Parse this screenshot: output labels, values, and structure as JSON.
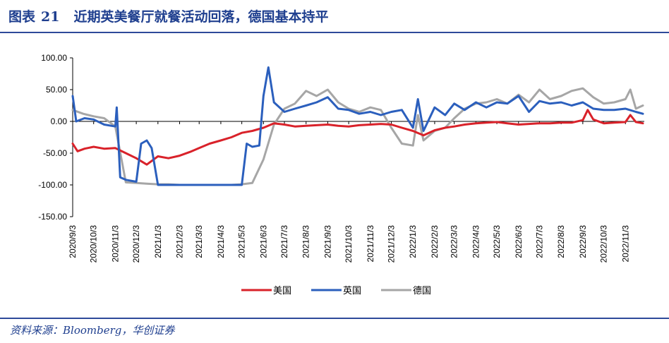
{
  "figure": {
    "label": "图表",
    "number": "21",
    "title": "近期英美餐厅就餐活动回落，德国基本持平",
    "source": "资料来源：Bloomberg，华创证券"
  },
  "chart_data": {
    "type": "line",
    "title": "",
    "xlabel": "",
    "ylabel": "",
    "ylim": [
      -150,
      100
    ],
    "yticks": [
      "100.00",
      "50.00",
      "0.00",
      "-50.00",
      "-100.00",
      "-150.00"
    ],
    "xticks": [
      "2020/9/3",
      "2020/10/3",
      "2020/11/3",
      "2020/12/3",
      "2021/1/3",
      "2021/2/3",
      "2021/3/3",
      "2021/4/3",
      "2021/5/3",
      "2021/6/3",
      "2021/7/3",
      "2021/8/3",
      "2021/9/3",
      "2021/10/3",
      "2021/11/3",
      "2021/12/3",
      "2022/1/3",
      "2022/2/3",
      "2022/3/3",
      "2022/4/3",
      "2022/5/3",
      "2022/6/3",
      "2022/7/3",
      "2022/8/3",
      "2022/9/3",
      "2022/10/3",
      "2022/11/3"
    ],
    "grid": false,
    "legend_position": "bottom",
    "series": [
      {
        "name": "美国",
        "color": "#d9222a",
        "x": [
          "2020/9/3",
          "2020/9/10",
          "2020/9/20",
          "2020/10/3",
          "2020/10/18",
          "2020/11/3",
          "2020/11/18",
          "2020/12/3",
          "2020/12/18",
          "2021/1/3",
          "2021/1/18",
          "2021/2/3",
          "2021/2/18",
          "2021/3/3",
          "2021/3/18",
          "2021/4/3",
          "2021/4/18",
          "2021/5/3",
          "2021/5/18",
          "2021/6/3",
          "2021/6/18",
          "2021/7/3",
          "2021/7/18",
          "2021/8/3",
          "2021/8/18",
          "2021/9/3",
          "2021/9/18",
          "2021/10/3",
          "2021/10/18",
          "2021/11/3",
          "2021/11/18",
          "2021/12/3",
          "2021/12/18",
          "2022/1/3",
          "2022/1/18",
          "2022/2/3",
          "2022/2/18",
          "2022/3/3",
          "2022/3/18",
          "2022/4/3",
          "2022/4/18",
          "2022/5/3",
          "2022/5/18",
          "2022/6/3",
          "2022/6/18",
          "2022/7/3",
          "2022/7/18",
          "2022/8/3",
          "2022/8/18",
          "2022/9/3",
          "2022/9/10",
          "2022/9/18",
          "2022/10/3",
          "2022/10/18",
          "2022/11/3",
          "2022/11/10",
          "2022/11/18",
          "2022/11/28"
        ],
        "values": [
          -35,
          -47,
          -43,
          -40,
          -43,
          -42,
          -50,
          -58,
          -68,
          -55,
          -58,
          -54,
          -48,
          -42,
          -35,
          -30,
          -25,
          -18,
          -15,
          -10,
          -3,
          -5,
          -8,
          -7,
          -6,
          -5,
          -7,
          -8,
          -6,
          -5,
          -4,
          -5,
          -10,
          -15,
          -22,
          -14,
          -10,
          -8,
          -5,
          -3,
          -2,
          -1,
          -3,
          -5,
          -4,
          -3,
          -3,
          -2,
          -2,
          2,
          18,
          3,
          -3,
          -2,
          -1,
          10,
          -1,
          -3
        ]
      },
      {
        "name": "英国",
        "color": "#2b5fbd",
        "x": [
          "2020/9/3",
          "2020/9/8",
          "2020/9/20",
          "2020/10/3",
          "2020/10/18",
          "2020/11/3",
          "2020/11/5",
          "2020/11/10",
          "2020/11/18",
          "2020/12/3",
          "2020/12/10",
          "2020/12/18",
          "2020/12/25",
          "2021/1/3",
          "2021/1/18",
          "2021/2/3",
          "2021/2/18",
          "2021/3/3",
          "2021/3/18",
          "2021/4/3",
          "2021/4/18",
          "2021/5/3",
          "2021/5/10",
          "2021/5/18",
          "2021/5/28",
          "2021/6/3",
          "2021/6/10",
          "2021/6/18",
          "2021/7/3",
          "2021/7/18",
          "2021/8/3",
          "2021/8/18",
          "2021/9/3",
          "2021/9/18",
          "2021/10/3",
          "2021/10/18",
          "2021/11/3",
          "2021/11/18",
          "2021/12/3",
          "2021/12/18",
          "2022/1/3",
          "2022/1/10",
          "2022/1/18",
          "2022/2/3",
          "2022/2/18",
          "2022/3/3",
          "2022/3/18",
          "2022/4/3",
          "2022/4/18",
          "2022/5/3",
          "2022/5/18",
          "2022/6/3",
          "2022/6/18",
          "2022/7/3",
          "2022/7/18",
          "2022/8/3",
          "2022/8/18",
          "2022/9/3",
          "2022/9/18",
          "2022/10/3",
          "2022/10/18",
          "2022/11/3",
          "2022/11/18",
          "2022/11/28"
        ],
        "values": [
          40,
          0,
          5,
          3,
          -5,
          -8,
          22,
          -88,
          -92,
          -95,
          -35,
          -30,
          -42,
          -100,
          -100,
          -100,
          -100,
          -100,
          -100,
          -100,
          -100,
          -100,
          -35,
          -40,
          -38,
          40,
          85,
          30,
          15,
          20,
          25,
          30,
          38,
          20,
          18,
          12,
          15,
          10,
          15,
          18,
          -10,
          35,
          -15,
          22,
          10,
          28,
          18,
          30,
          22,
          30,
          28,
          40,
          15,
          32,
          28,
          30,
          25,
          30,
          20,
          18,
          18,
          20,
          15,
          12
        ]
      },
      {
        "name": "德国",
        "color": "#a6a6a6",
        "x": [
          "2020/9/3",
          "2020/9/18",
          "2020/10/3",
          "2020/10/18",
          "2020/11/3",
          "2020/11/18",
          "2020/12/3",
          "2020/12/18",
          "2021/1/3",
          "2021/1/18",
          "2021/2/3",
          "2021/2/18",
          "2021/3/3",
          "2021/3/18",
          "2021/4/3",
          "2021/4/18",
          "2021/5/3",
          "2021/5/18",
          "2021/6/3",
          "2021/6/18",
          "2021/7/3",
          "2021/7/18",
          "2021/8/3",
          "2021/8/18",
          "2021/9/3",
          "2021/9/18",
          "2021/10/3",
          "2021/10/18",
          "2021/11/3",
          "2021/11/18",
          "2021/12/3",
          "2021/12/18",
          "2022/1/3",
          "2022/1/10",
          "2022/1/18",
          "2022/2/3",
          "2022/2/18",
          "2022/3/3",
          "2022/3/18",
          "2022/4/3",
          "2022/4/18",
          "2022/5/3",
          "2022/5/18",
          "2022/6/3",
          "2022/6/18",
          "2022/7/3",
          "2022/7/18",
          "2022/8/3",
          "2022/8/18",
          "2022/9/3",
          "2022/9/18",
          "2022/10/3",
          "2022/10/18",
          "2022/11/3",
          "2022/11/10",
          "2022/11/18",
          "2022/11/28"
        ],
        "values": [
          18,
          12,
          8,
          5,
          -8,
          -96,
          -97,
          -98,
          -99,
          -99,
          -100,
          -100,
          -100,
          -100,
          -100,
          -100,
          -99,
          -97,
          -60,
          -5,
          20,
          28,
          48,
          40,
          50,
          30,
          20,
          15,
          22,
          18,
          -10,
          -35,
          -38,
          10,
          -30,
          -15,
          -10,
          5,
          20,
          28,
          30,
          35,
          28,
          42,
          30,
          50,
          35,
          40,
          48,
          52,
          38,
          28,
          30,
          35,
          50,
          20,
          25
        ]
      }
    ]
  }
}
